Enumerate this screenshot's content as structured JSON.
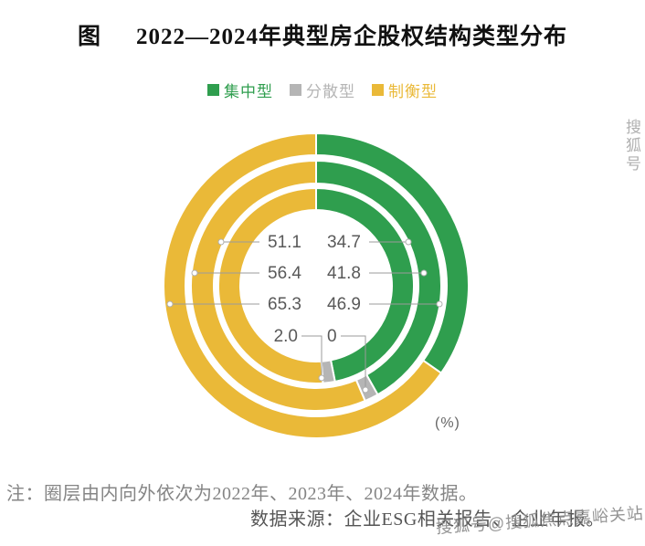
{
  "title": {
    "prefix": "图",
    "text": "2022—2024年典型房企股权结构类型分布"
  },
  "legend": {
    "items": [
      {
        "label": "集中型",
        "color": "#2f9e4e"
      },
      {
        "label": "分散型",
        "color": "#b5b5b5"
      },
      {
        "label": "制衡型",
        "color": "#eab938"
      }
    ]
  },
  "chart_data": {
    "type": "pie",
    "subtype": "concentric-donut",
    "unit_label": "(%)",
    "series_names": [
      "集中型",
      "分散型",
      "制衡型"
    ],
    "colors": {
      "集中型": "#2f9e4e",
      "分散型": "#b5b5b5",
      "制衡型": "#eab938"
    },
    "rings_order_note": "inner to outer = 2022, 2023, 2024",
    "rings": [
      {
        "year": "2022年",
        "position": "inner",
        "values": {
          "集中型": 46.9,
          "分散型": 2.0,
          "制衡型": 51.1
        }
      },
      {
        "year": "2023年",
        "position": "middle",
        "values": {
          "集中型": 41.8,
          "分散型": null,
          "制衡型": 56.4
        }
      },
      {
        "year": "2024年",
        "position": "outer",
        "values": {
          "集中型": 34.7,
          "分散型": 0,
          "制衡型": 65.3
        }
      }
    ],
    "center_labels": {
      "rows": [
        {
          "left": "51.1",
          "right": "34.7"
        },
        {
          "left": "56.4",
          "right": "41.8"
        },
        {
          "left": "65.3",
          "right": "46.9"
        },
        {
          "left": "2.0",
          "right": "0"
        }
      ]
    }
  },
  "note": "注：圈层由内向外依次为2022年、2023年、2024年数据。",
  "source": "数据来源：企业ESG相关报告、企业年报。",
  "watermark": {
    "side": "搜狐号",
    "bottom": "搜狐号@搜狐焦点嘉峪关站"
  }
}
